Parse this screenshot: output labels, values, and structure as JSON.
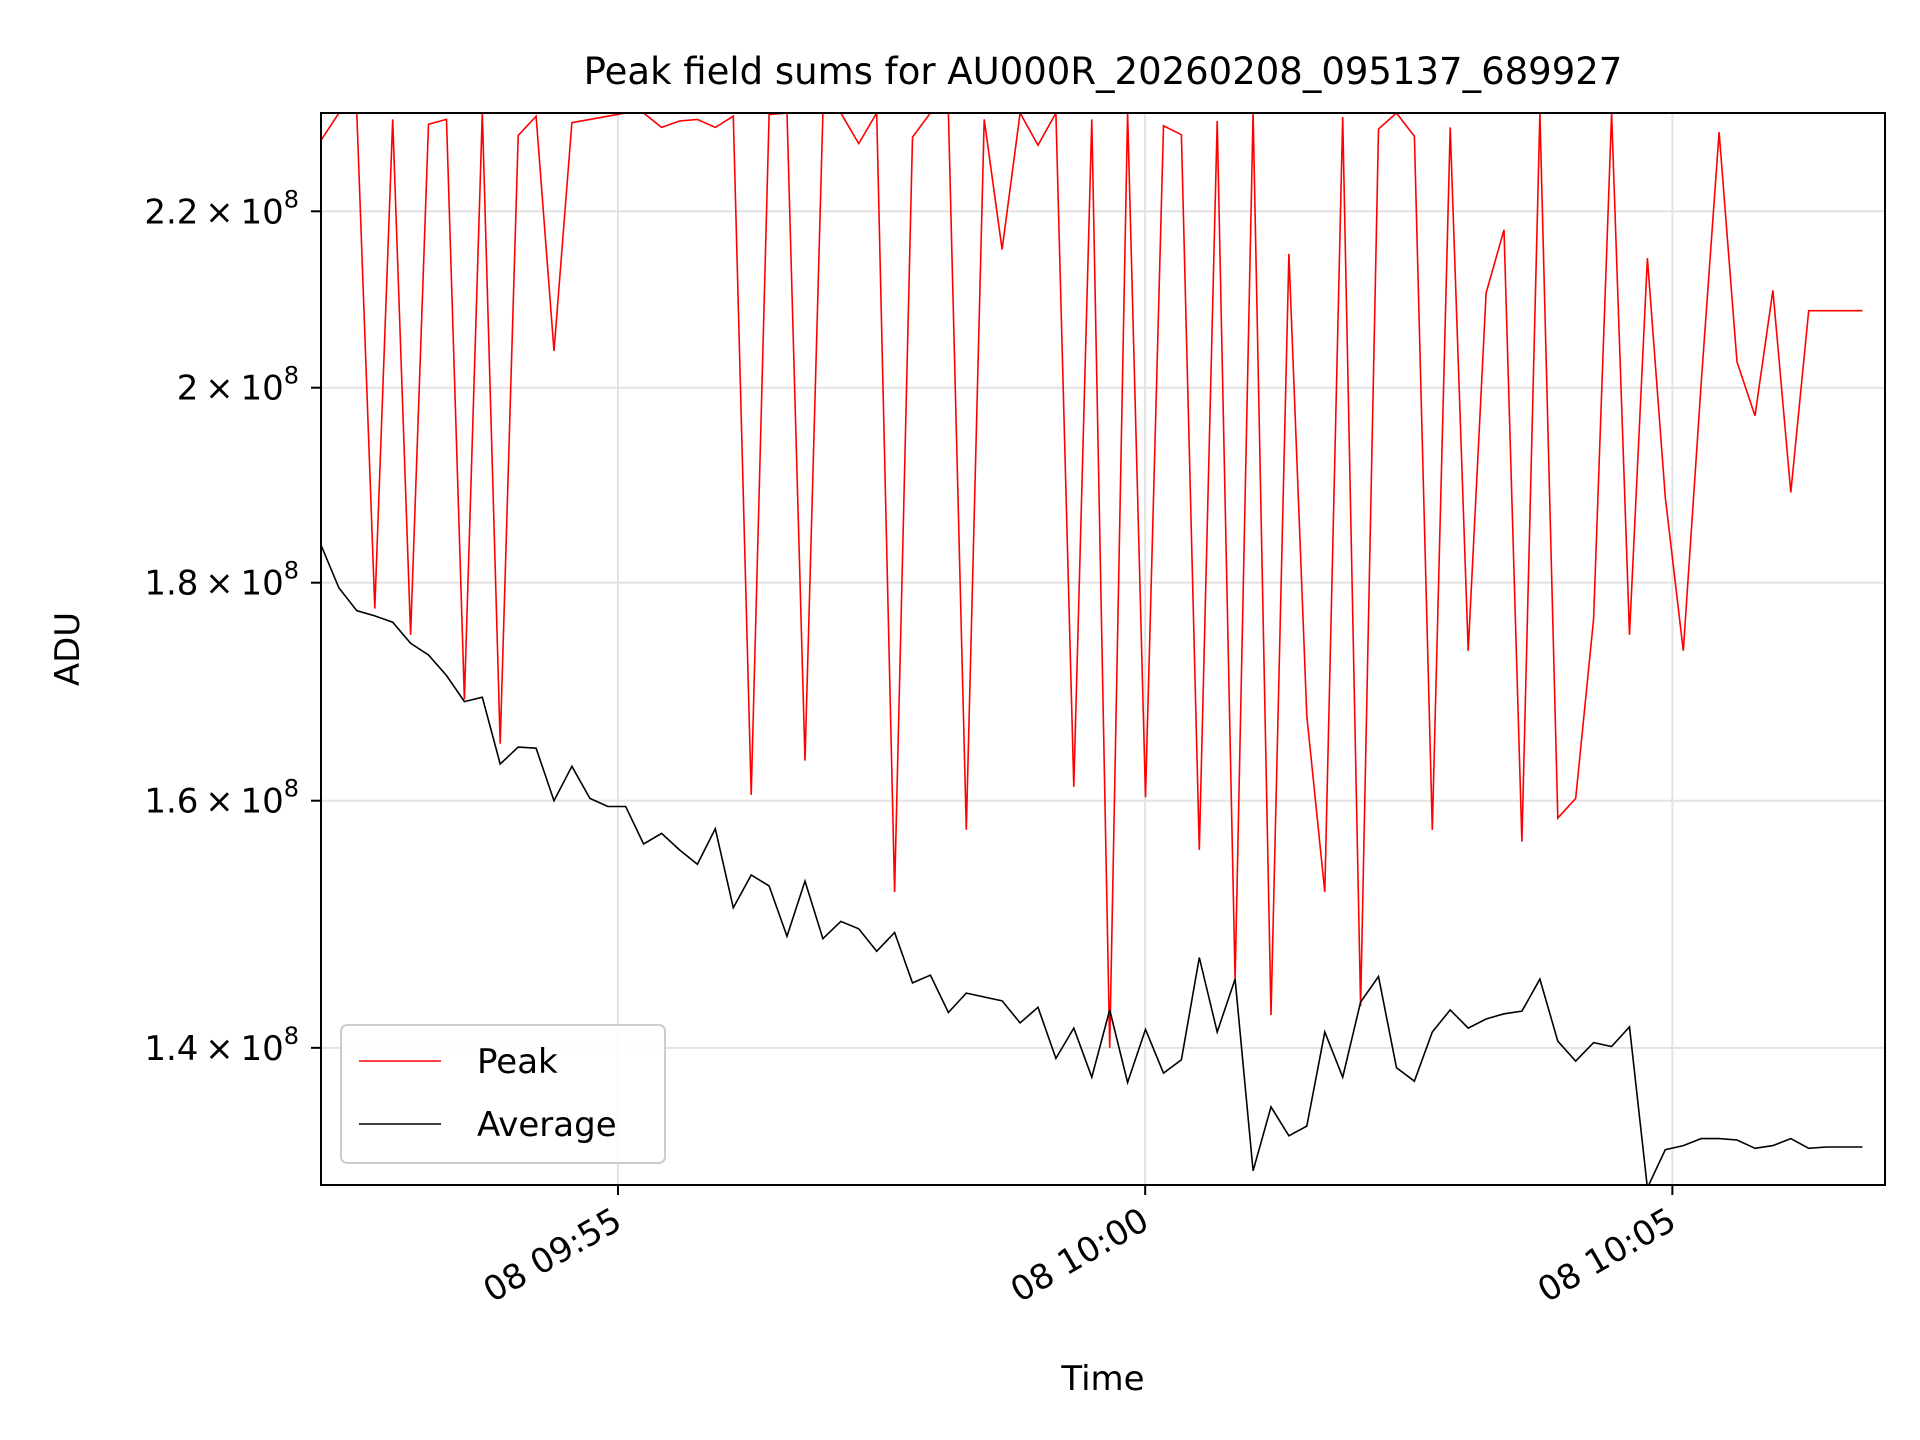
{
  "chart_data": {
    "type": "line",
    "title": "Peak field sums for AU000R_20260208_095137_689927",
    "xlabel": "Time",
    "ylabel": "ADU",
    "y_scale": "log",
    "xlim": [
      "2026-02-08 09:52:11",
      "2026-02-08 10:07:01"
    ],
    "ylim": [
      130000000,
      232000000
    ],
    "x_ticks": [
      {
        "value": "2026-02-08 09:55:00",
        "label": "08 09:55"
      },
      {
        "value": "2026-02-08 10:00:00",
        "label": "08 10:00"
      },
      {
        "value": "2026-02-08 10:05:00",
        "label": "08 10:05"
      }
    ],
    "y_ticks": [
      {
        "value": 140000000,
        "mantissa": "1.4",
        "exponent": "8"
      },
      {
        "value": 160000000,
        "mantissa": "1.6",
        "exponent": "8"
      },
      {
        "value": 180000000,
        "mantissa": "1.8",
        "exponent": "8"
      },
      {
        "value": 200000000,
        "mantissa": "2",
        "exponent": "8"
      },
      {
        "value": 220000000,
        "mantissa": "2.2",
        "exponent": "8"
      }
    ],
    "grid": true,
    "legend_position": "lower-left",
    "x_start": "2026-02-08 09:52:11",
    "x_step_seconds": 10.2,
    "series": [
      {
        "name": "Peak",
        "color": "#ff0000",
        "values": [
          228.6,
          232,
          232,
          177.5,
          231.2,
          175,
          230.6,
          231.2,
          169,
          232,
          165,
          229.2,
          231.6,
          204,
          230.8,
          231.2,
          231.6,
          232,
          232,
          230.2,
          231,
          231.2,
          230.2,
          231.6,
          160.5,
          231.8,
          232,
          163.5,
          232,
          232,
          228.2,
          232,
          152.3,
          229,
          232,
          232,
          157.5,
          231.2,
          215.5,
          232,
          228,
          232,
          161.2,
          231.2,
          140,
          232,
          160.3,
          230.4,
          229.3,
          155.8,
          231,
          145.2,
          232,
          142.5,
          215,
          167.5,
          152.3,
          231.5,
          143.2,
          230,
          232,
          229.1,
          157.5,
          230.2,
          173.5,
          210.5,
          217.8,
          156.5,
          232,
          158.5,
          160.2,
          176.5,
          232,
          175,
          214.5,
          188.5,
          173.5,
          200.5,
          229.6,
          202.8,
          197,
          210.8,
          189,
          208.5,
          208.5,
          208.5,
          208.5
        ]
      },
      {
        "name": "Average",
        "color": "#000000",
        "values": [
          183.7,
          179.5,
          177.3,
          176.8,
          176.2,
          174.2,
          173.1,
          171.2,
          168.8,
          169.2,
          163.2,
          164.7,
          164.6,
          160,
          163,
          160.2,
          159.5,
          159.5,
          156.3,
          157.2,
          155.8,
          154.6,
          157.6,
          151,
          153.7,
          152.8,
          148.7,
          153.2,
          148.5,
          149.9,
          149.3,
          147.5,
          149,
          145,
          145.6,
          142.7,
          144.2,
          143.9,
          143.6,
          141.9,
          143.1,
          139.2,
          141.5,
          137.8,
          142.9,
          137.4,
          141.4,
          138.1,
          139.1,
          147,
          141.2,
          145.3,
          131,
          135.6,
          133.5,
          134.2,
          141.2,
          137.8,
          143.5,
          145.5,
          138.5,
          137.5,
          141.2,
          142.9,
          141.5,
          142.2,
          142.6,
          142.8,
          145.3,
          140.5,
          139,
          140.4,
          140.1,
          141.6,
          129.8,
          132.5,
          132.8,
          133.3,
          133.3,
          133.2,
          132.6,
          132.8,
          133.3,
          132.6,
          132.7,
          132.7,
          132.7
        ]
      }
    ]
  }
}
